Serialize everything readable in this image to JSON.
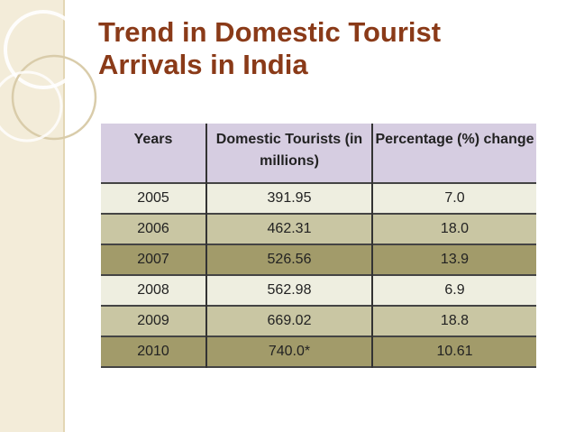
{
  "slide": {
    "title_line1": "Trend in Domestic Tourist",
    "title_line2": "Arrivals in India"
  },
  "table": {
    "headers": [
      "Years",
      "Domestic Tourists (in millions)",
      "Percentage (%) change"
    ],
    "rows": [
      [
        "2005",
        "391.95",
        "7.0"
      ],
      [
        "2006",
        "462.31",
        "18.0"
      ],
      [
        "2007",
        "526.56",
        "13.9"
      ],
      [
        "2008",
        "562.98",
        "6.9"
      ],
      [
        "2009",
        "669.02",
        "18.8"
      ],
      [
        "2010",
        "740.0*",
        "10.61"
      ]
    ]
  },
  "colors": {
    "title": "#8a3a18",
    "header_bg": "#d6cde1",
    "row_light": "#eeeee0",
    "row_mid": "#c9c6a3",
    "row_dark": "#a29b6a"
  }
}
